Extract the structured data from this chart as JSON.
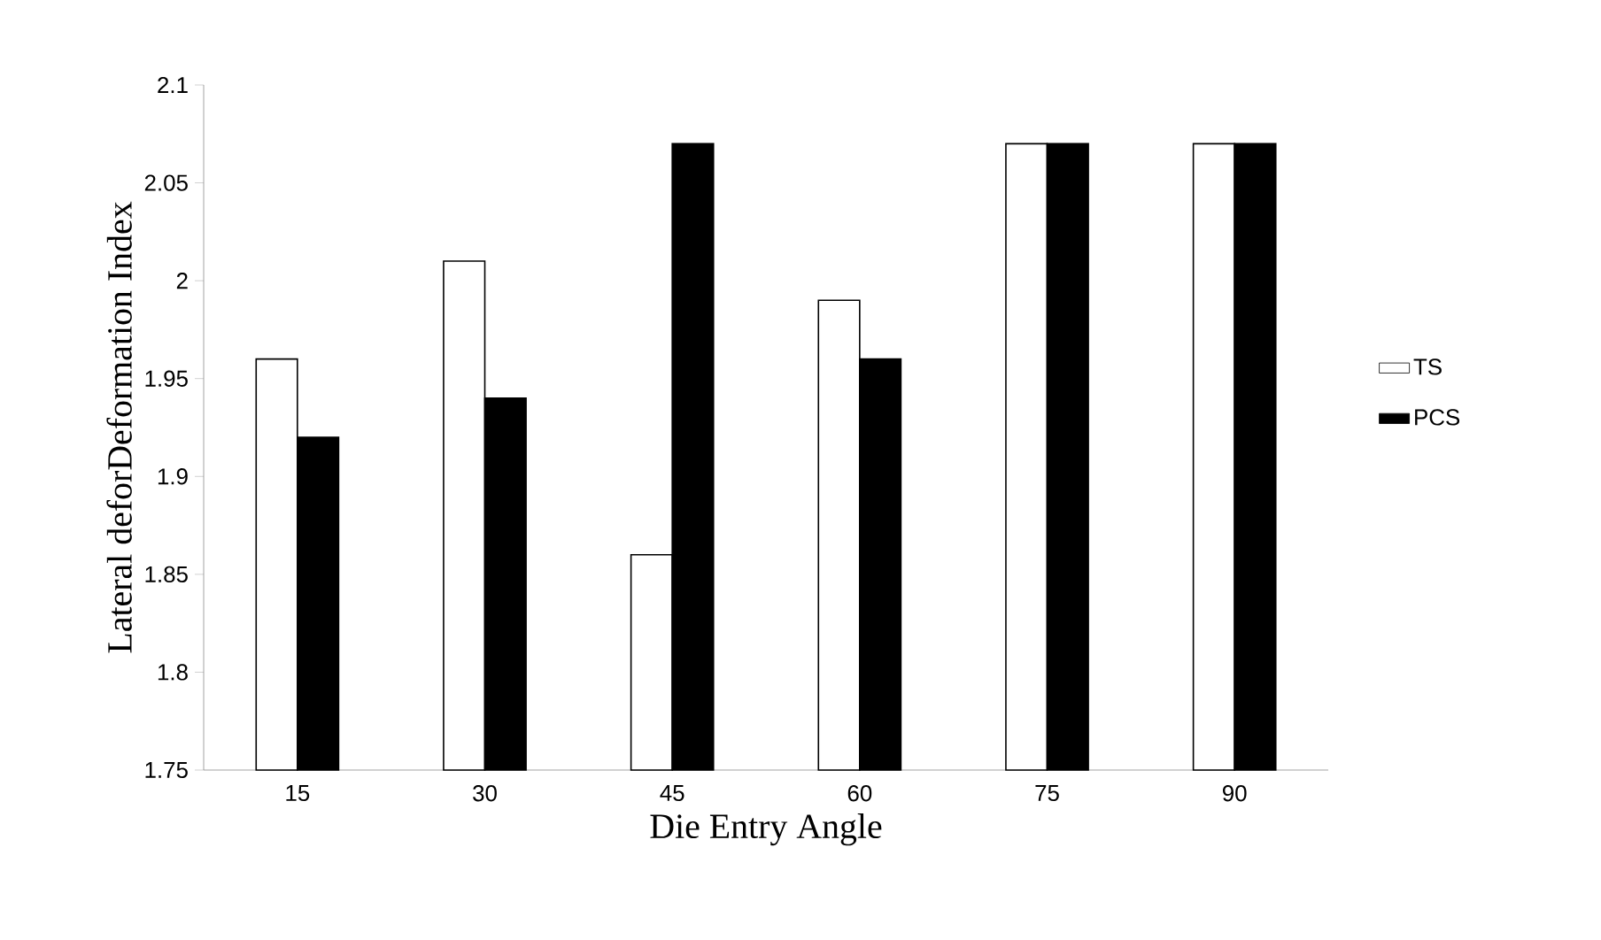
{
  "chart_data": {
    "type": "bar",
    "xlabel": "Die Entry Angle",
    "ylabel": "Lateral deforDeformation Index",
    "categories": [
      "15",
      "30",
      "45",
      "60",
      "75",
      "90"
    ],
    "series": [
      {
        "name": "TS",
        "color": "#ffffff",
        "values": [
          1.96,
          2.01,
          1.86,
          1.99,
          2.07,
          2.07
        ]
      },
      {
        "name": "PCS",
        "color": "#000000",
        "values": [
          1.92,
          1.94,
          2.07,
          1.96,
          2.07,
          2.07
        ]
      }
    ],
    "ylim": [
      1.75,
      2.1
    ],
    "yticks": [
      1.75,
      1.8,
      1.85,
      1.9,
      1.95,
      2,
      2.05,
      2.1
    ],
    "grid": false,
    "legend": "right"
  }
}
